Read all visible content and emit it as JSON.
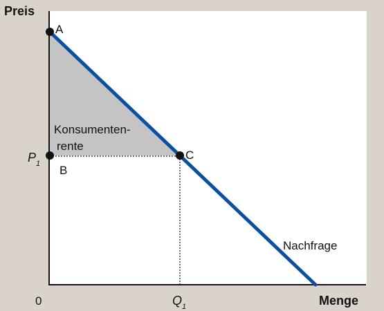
{
  "diagram": {
    "y_axis_label": "Preis",
    "x_axis_label": "Menge",
    "origin_label": "0",
    "price_label": "P",
    "price_subscript": "1",
    "quantity_label": "Q",
    "quantity_subscript": "1",
    "point_a_label": "A",
    "point_b_label": "B",
    "point_c_label": "C",
    "curve_label": "Nachfrage",
    "area_label_line1": "Konsumenten-",
    "area_label_line2": "rente",
    "colors": {
      "background": "#d9d3cb",
      "plot_area": "#ffffff",
      "demand_line": "#0b4fa0",
      "consumer_surplus": "#c4c4c4",
      "axis": "#111111"
    }
  }
}
